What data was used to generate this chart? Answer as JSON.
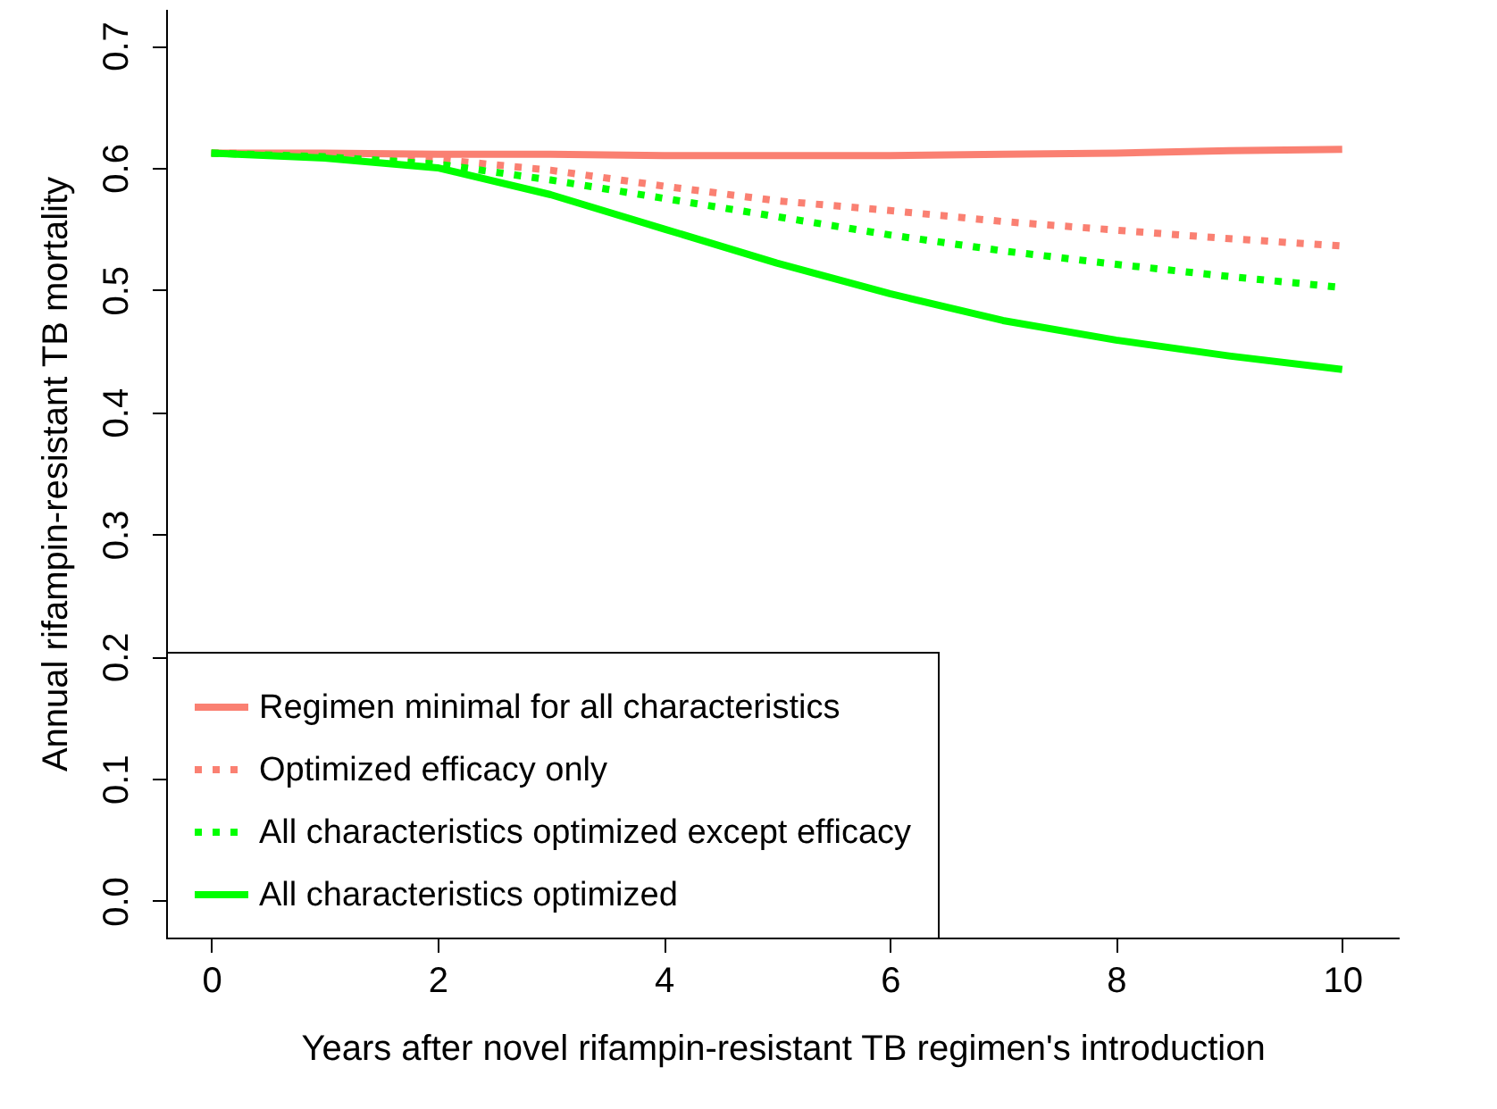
{
  "chart_data": {
    "type": "line",
    "xlabel": "Years after novel rifampin-resistant TB regimen's introduction",
    "ylabel": "Annual rifampin-resistant TB mortality",
    "x": [
      0,
      1,
      2,
      3,
      4,
      5,
      6,
      7,
      8,
      9,
      10
    ],
    "series": [
      {
        "name": "Regimen minimal for all characteristics",
        "color": "#fa8072",
        "line_style": "solid",
        "values": [
          0.612,
          0.612,
          0.611,
          0.611,
          0.61,
          0.61,
          0.61,
          0.611,
          0.612,
          0.614,
          0.615
        ]
      },
      {
        "name": "Optimized efficacy only",
        "color": "#fa8072",
        "line_style": "dotted",
        "values": [
          0.612,
          0.611,
          0.607,
          0.598,
          0.585,
          0.573,
          0.565,
          0.556,
          0.549,
          0.542,
          0.536
        ]
      },
      {
        "name": "All characteristics optimized except efficacy",
        "color": "#00ff00",
        "line_style": "dotted",
        "values": [
          0.612,
          0.609,
          0.603,
          0.59,
          0.575,
          0.56,
          0.545,
          0.532,
          0.521,
          0.511,
          0.502
        ]
      },
      {
        "name": "All characteristics optimized",
        "color": "#00ff00",
        "line_style": "solid",
        "values": [
          0.612,
          0.608,
          0.6,
          0.578,
          0.55,
          0.522,
          0.497,
          0.475,
          0.459,
          0.446,
          0.435
        ]
      }
    ],
    "xlim": [
      -0.4,
      10.5
    ],
    "ylim": [
      -0.03,
      0.73
    ],
    "xticks": [
      0,
      2,
      4,
      6,
      8,
      10
    ],
    "yticks": [
      {
        "value": 0,
        "label": "0.0"
      },
      0.1,
      0.2,
      0.3,
      0.4,
      0.5,
      0.6,
      0.7
    ],
    "legend": "bottom left",
    "grid": false
  }
}
